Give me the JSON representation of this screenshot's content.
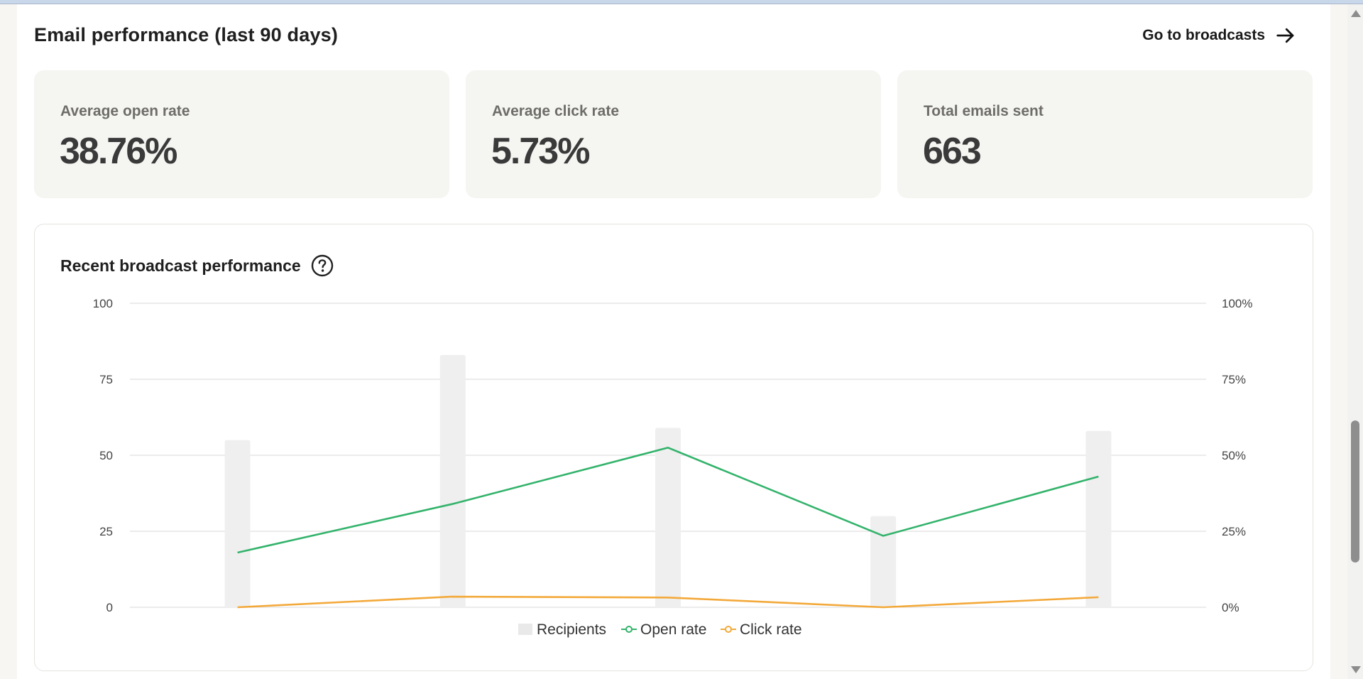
{
  "header": {
    "title": "Email performance (last 90 days)",
    "goto_label": "Go to broadcasts"
  },
  "stats": [
    {
      "label": "Average open rate",
      "value": "38.76%"
    },
    {
      "label": "Average click rate",
      "value": "5.73%"
    },
    {
      "label": "Total emails sent",
      "value": "663"
    }
  ],
  "chart_title": "Recent broadcast performance",
  "colors": {
    "recipients": "#efefef",
    "open_rate": "#33b36b",
    "click_rate": "#f3a93a",
    "grid": "#e6e6e6",
    "tick_text": "#444444"
  },
  "icons": {
    "goto": "arrow-right-icon",
    "help": "question-circle-icon"
  },
  "chart_data": {
    "type": "bar",
    "categories": [
      "",
      "",
      "",
      "",
      ""
    ],
    "series": [
      {
        "name": "Recipients",
        "type": "bar",
        "axis": "left",
        "values": [
          55,
          83,
          59,
          30,
          58
        ]
      },
      {
        "name": "Open rate",
        "type": "line",
        "axis": "right",
        "values": [
          18,
          34,
          52.5,
          23.5,
          43
        ]
      },
      {
        "name": "Click rate",
        "type": "line",
        "axis": "right",
        "values": [
          0,
          3.5,
          3.2,
          0,
          3.3
        ]
      }
    ],
    "left_axis": {
      "ylim": [
        0,
        100
      ],
      "ticks": [
        "0",
        "25",
        "50",
        "75",
        "100"
      ],
      "tick_values": [
        0,
        25,
        50,
        75,
        100
      ]
    },
    "right_axis": {
      "ylim": [
        0,
        100
      ],
      "ticks": [
        "0%",
        "25%",
        "50%",
        "75%",
        "100%"
      ],
      "tick_values": [
        0,
        25,
        50,
        75,
        100
      ]
    },
    "grid": true,
    "legend_position": "bottom-center",
    "legend": [
      "Recipients",
      "Open rate",
      "Click rate"
    ]
  }
}
